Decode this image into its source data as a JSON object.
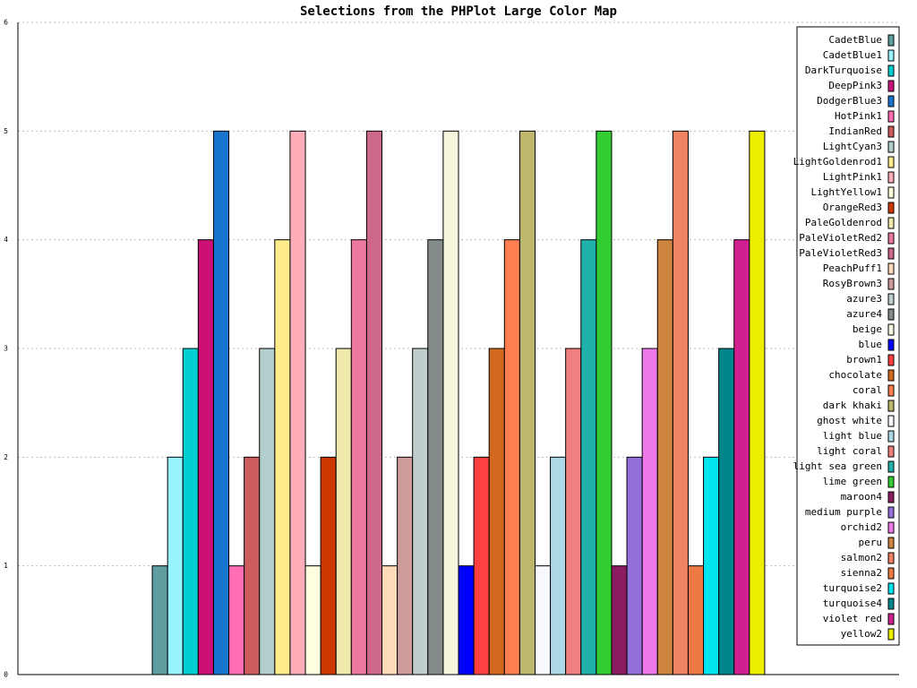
{
  "chart_data": {
    "type": "bar",
    "title": "Selections from the PHPlot Large Color Map",
    "categories": [
      null
    ],
    "series": [
      {
        "name": "CadetBlue",
        "color": "#5f9ea0",
        "values": [
          1
        ]
      },
      {
        "name": "CadetBlue1",
        "color": "#98f5ff",
        "values": [
          2
        ]
      },
      {
        "name": "DarkTurquoise",
        "color": "#00ced1",
        "values": [
          3
        ]
      },
      {
        "name": "DeepPink3",
        "color": "#cd1076",
        "values": [
          4
        ]
      },
      {
        "name": "DodgerBlue3",
        "color": "#1874cd",
        "values": [
          5
        ]
      },
      {
        "name": "HotPink1",
        "color": "#ff6eb4",
        "values": [
          1
        ]
      },
      {
        "name": "IndianRed",
        "color": "#cd5c5c",
        "values": [
          2
        ]
      },
      {
        "name": "LightCyan3",
        "color": "#b4cdcd",
        "values": [
          3
        ]
      },
      {
        "name": "LightGoldenrod1",
        "color": "#ffec8b",
        "values": [
          4
        ]
      },
      {
        "name": "LightPink1",
        "color": "#ffaeb9",
        "values": [
          5
        ]
      },
      {
        "name": "LightYellow1",
        "color": "#ffffe0",
        "values": [
          1
        ]
      },
      {
        "name": "OrangeRed3",
        "color": "#cd3700",
        "values": [
          2
        ]
      },
      {
        "name": "PaleGoldenrod",
        "color": "#eee8aa",
        "values": [
          3
        ]
      },
      {
        "name": "PaleVioletRed2",
        "color": "#ee799f",
        "values": [
          4
        ]
      },
      {
        "name": "PaleVioletRed3",
        "color": "#cd6889",
        "values": [
          5
        ]
      },
      {
        "name": "PeachPuff1",
        "color": "#ffdab9",
        "values": [
          1
        ]
      },
      {
        "name": "RosyBrown3",
        "color": "#cd9b9b",
        "values": [
          2
        ]
      },
      {
        "name": "azure3",
        "color": "#c1cdcd",
        "values": [
          3
        ]
      },
      {
        "name": "azure4",
        "color": "#838b8b",
        "values": [
          4
        ]
      },
      {
        "name": "beige",
        "color": "#f5f5dc",
        "values": [
          5
        ]
      },
      {
        "name": "blue",
        "color": "#0000ff",
        "values": [
          1
        ]
      },
      {
        "name": "brown1",
        "color": "#ff4040",
        "values": [
          2
        ]
      },
      {
        "name": "chocolate",
        "color": "#d2691e",
        "values": [
          3
        ]
      },
      {
        "name": "coral",
        "color": "#ff7f50",
        "values": [
          4
        ]
      },
      {
        "name": "dark khaki",
        "color": "#bdb76b",
        "values": [
          5
        ]
      },
      {
        "name": "ghost white",
        "color": "#f8f8ff",
        "values": [
          1
        ]
      },
      {
        "name": "light blue",
        "color": "#add8e6",
        "values": [
          2
        ]
      },
      {
        "name": "light coral",
        "color": "#f08080",
        "values": [
          3
        ]
      },
      {
        "name": "light sea green",
        "color": "#20b2aa",
        "values": [
          4
        ]
      },
      {
        "name": "lime green",
        "color": "#32cd32",
        "values": [
          5
        ]
      },
      {
        "name": "maroon4",
        "color": "#8b1c62",
        "values": [
          1
        ]
      },
      {
        "name": "medium purple",
        "color": "#9370db",
        "values": [
          2
        ]
      },
      {
        "name": "orchid2",
        "color": "#ee7ae9",
        "values": [
          3
        ]
      },
      {
        "name": "peru",
        "color": "#cd853f",
        "values": [
          4
        ]
      },
      {
        "name": "salmon2",
        "color": "#ee8262",
        "values": [
          5
        ]
      },
      {
        "name": "sienna2",
        "color": "#ee7942",
        "values": [
          1
        ]
      },
      {
        "name": "turquoise2",
        "color": "#00e5ee",
        "values": [
          2
        ]
      },
      {
        "name": "turquoise4",
        "color": "#00868b",
        "values": [
          3
        ]
      },
      {
        "name": "violet red",
        "color": "#d02090",
        "values": [
          4
        ]
      },
      {
        "name": "yellow2",
        "color": "#eeee00",
        "values": [
          5
        ]
      }
    ],
    "ylim": [
      0,
      6
    ],
    "yticks": [
      0,
      1,
      2,
      3,
      4,
      5,
      6
    ],
    "grid": true,
    "legend": "upper right"
  }
}
